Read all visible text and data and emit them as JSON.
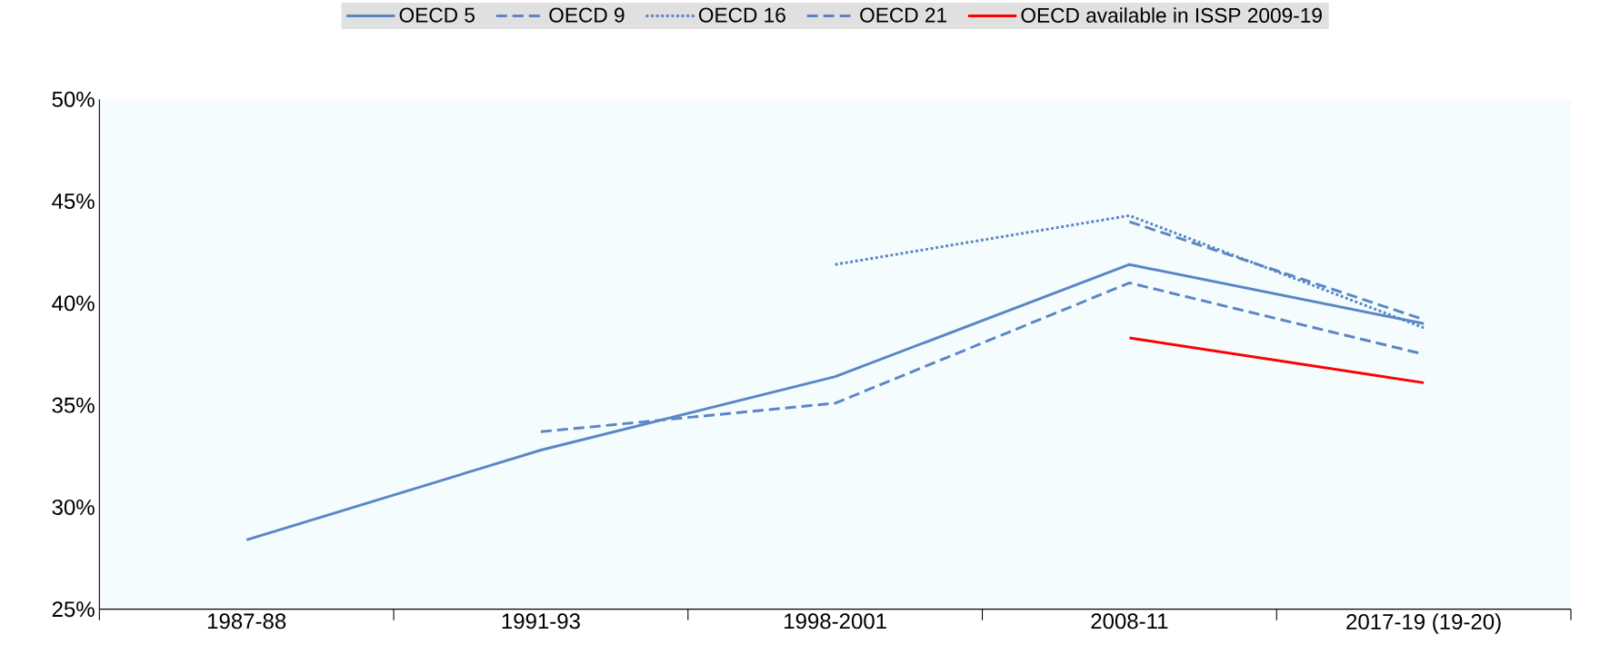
{
  "chart_data": {
    "type": "line",
    "categories": [
      "1987-88",
      "1991-93",
      "1998-2001",
      "2008-11",
      "2017-19 (19-20)"
    ],
    "series": [
      {
        "name": "OECD 5",
        "color": "#5b86c4",
        "line_style": "solid",
        "values": [
          28.4,
          32.8,
          36.4,
          41.9,
          39.0
        ]
      },
      {
        "name": "OECD 9",
        "color": "#5b86c4",
        "line_style": "dashed",
        "values": [
          null,
          33.7,
          35.1,
          41.0,
          37.5
        ]
      },
      {
        "name": "OECD 16",
        "color": "#5b86c4",
        "line_style": "dotted",
        "values": [
          null,
          null,
          41.9,
          44.3,
          38.8
        ]
      },
      {
        "name": "OECD 21",
        "color": "#5b86c4",
        "line_style": "dashed",
        "values": [
          null,
          null,
          null,
          44.0,
          39.2
        ]
      },
      {
        "name": "OECD available in ISSP 2009-19",
        "color": "#ff0000",
        "line_style": "solid",
        "values": [
          null,
          null,
          null,
          38.3,
          36.1
        ]
      }
    ],
    "ylim": [
      25,
      50
    ],
    "yticks": [
      {
        "value": 25,
        "label": "25%"
      },
      {
        "value": 30,
        "label": "30%"
      },
      {
        "value": 35,
        "label": "35%"
      },
      {
        "value": 40,
        "label": "40%"
      },
      {
        "value": 45,
        "label": "45%"
      },
      {
        "value": 50,
        "label": "50%"
      }
    ],
    "grid": false,
    "legend": "top",
    "marker": "none"
  }
}
